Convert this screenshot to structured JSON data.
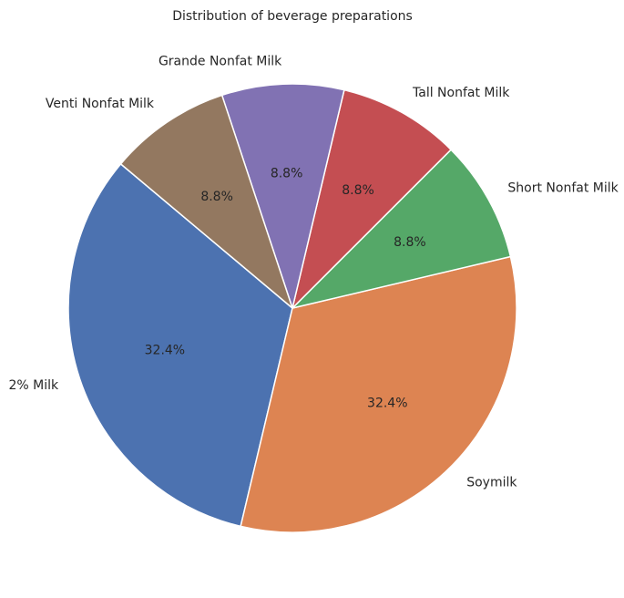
{
  "chart_data": {
    "type": "pie",
    "title": "Distribution of beverage preparations",
    "labels": [
      "2% Milk",
      "Soymilk",
      "Short Nonfat Milk",
      "Tall Nonfat Milk",
      "Grande Nonfat Milk",
      "Venti Nonfat Milk"
    ],
    "values": [
      32.4,
      32.4,
      8.8,
      8.8,
      8.8,
      8.8
    ],
    "percent_labels": [
      "32.4%",
      "32.4%",
      "8.8%",
      "8.8%",
      "8.8%",
      "8.8%"
    ],
    "colors": [
      "#4c72b0",
      "#dd8452",
      "#55a868",
      "#c44e52",
      "#8172b3",
      "#937860"
    ],
    "start_angle_deg": 140,
    "direction": "counterclockwise",
    "edge_color": "#ffffff"
  }
}
